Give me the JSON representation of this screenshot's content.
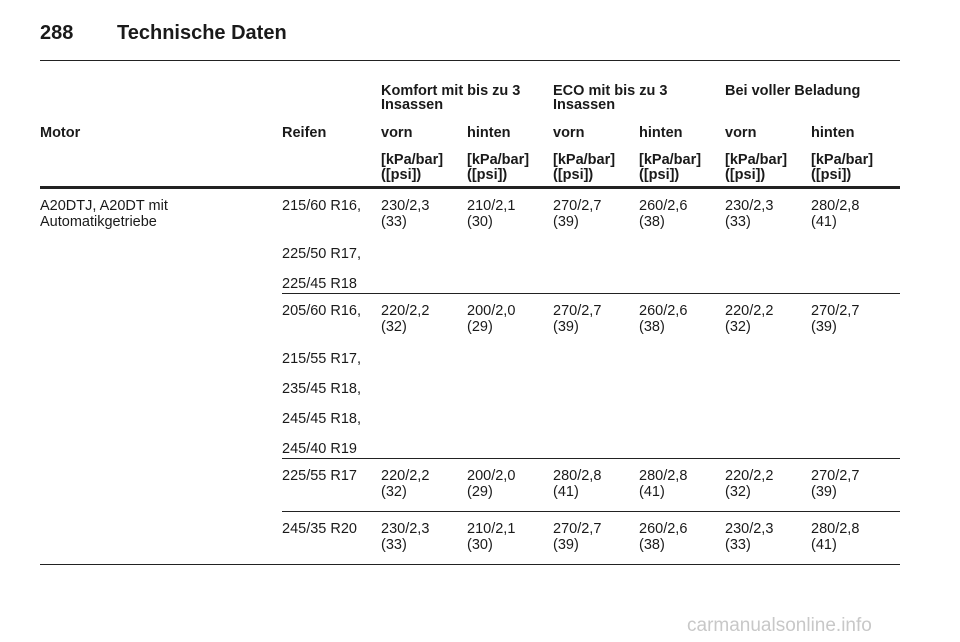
{
  "header": {
    "page_number": "288",
    "title": "Technische Daten"
  },
  "table": {
    "group_headers": [
      [
        "Komfort mit bis zu 3",
        "Insassen"
      ],
      [
        "ECO mit bis zu 3",
        "Insassen"
      ],
      [
        "Bei voller Beladung"
      ]
    ],
    "column_headers": [
      "Motor",
      "Reifen",
      "vorn",
      "hinten",
      "vorn",
      "hinten",
      "vorn",
      "hinten"
    ],
    "unit_headers": [
      [
        "[kPa/bar]",
        "([psi])"
      ],
      [
        "[kPa/bar]",
        "([psi])"
      ],
      [
        "[kPa/bar]",
        "([psi])"
      ],
      [
        "[kPa/bar]",
        "([psi])"
      ],
      [
        "[kPa/bar]",
        "([psi])"
      ],
      [
        "[kPa/bar]",
        "([psi])"
      ]
    ],
    "motor": [
      "A20DTJ, A20DT mit",
      "Automatikgetriebe"
    ],
    "groups": [
      {
        "tires": [
          "215/60 R16,",
          "225/50 R17,",
          "225/45 R18"
        ],
        "values": [
          [
            "230/2,3",
            "(33)"
          ],
          [
            "210/2,1",
            "(30)"
          ],
          [
            "270/2,7",
            "(39)"
          ],
          [
            "260/2,6",
            "(38)"
          ],
          [
            "230/2,3",
            "(33)"
          ],
          [
            "280/2,8",
            "(41)"
          ]
        ]
      },
      {
        "tires": [
          "205/60 R16,",
          "215/55 R17,",
          "235/45 R18,",
          "245/45 R18,",
          "245/40 R19"
        ],
        "values": [
          [
            "220/2,2",
            "(32)"
          ],
          [
            "200/2,0",
            "(29)"
          ],
          [
            "270/2,7",
            "(39)"
          ],
          [
            "260/2,6",
            "(38)"
          ],
          [
            "220/2,2",
            "(32)"
          ],
          [
            "270/2,7",
            "(39)"
          ]
        ]
      },
      {
        "tires": [
          "225/55 R17"
        ],
        "values": [
          [
            "220/2,2",
            "(32)"
          ],
          [
            "200/2,0",
            "(29)"
          ],
          [
            "280/2,8",
            "(41)"
          ],
          [
            "280/2,8",
            "(41)"
          ],
          [
            "220/2,2",
            "(32)"
          ],
          [
            "270/2,7",
            "(39)"
          ]
        ]
      },
      {
        "tires": [
          "245/35 R20"
        ],
        "values": [
          [
            "230/2,3",
            "(33)"
          ],
          [
            "210/2,1",
            "(30)"
          ],
          [
            "270/2,7",
            "(39)"
          ],
          [
            "260/2,6",
            "(38)"
          ],
          [
            "230/2,3",
            "(33)"
          ],
          [
            "280/2,8",
            "(41)"
          ]
        ]
      }
    ]
  },
  "watermark": "carmanualsonline.info"
}
